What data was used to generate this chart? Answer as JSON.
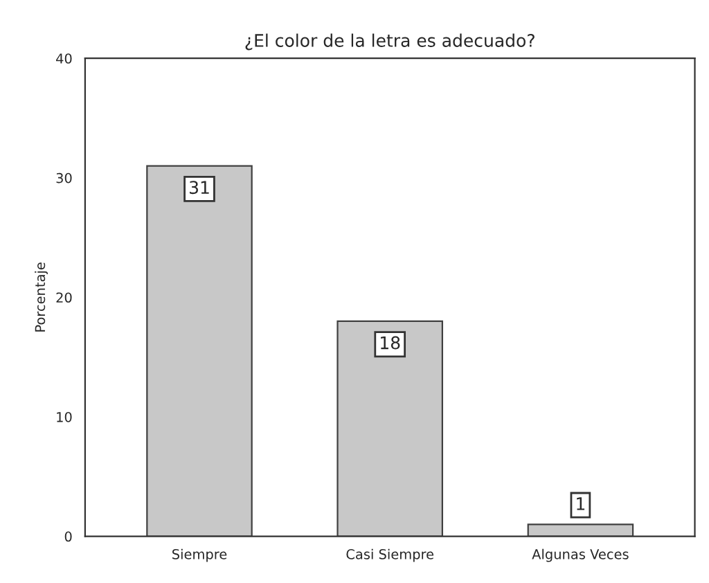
{
  "chart_data": {
    "type": "bar",
    "title": "¿El color de la letra es adecuado?",
    "ylabel": "Porcentaje",
    "categories": [
      "Siempre",
      "Casi Siempre",
      "Algunas Veces"
    ],
    "values": [
      31,
      18,
      1
    ],
    "color": "#c8c8c8",
    "ylim": [
      0,
      40
    ],
    "yticks": [
      0,
      10,
      20,
      30,
      40
    ],
    "data_labels": true,
    "grid": false
  }
}
